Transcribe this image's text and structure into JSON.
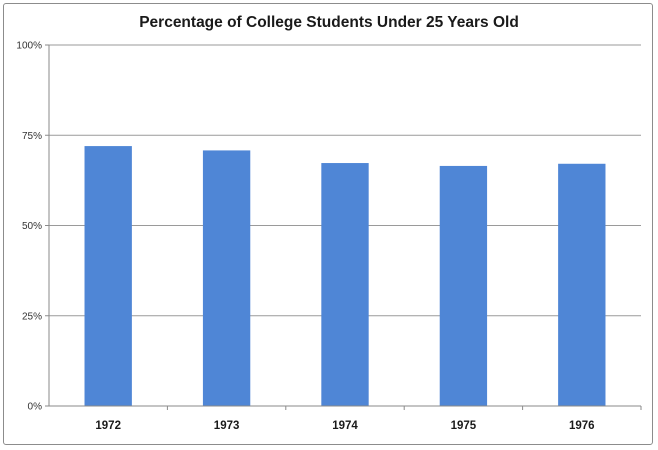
{
  "chart_data": {
    "type": "bar",
    "title": "Percentage of College Students Under 25 Years Old",
    "xlabel": "",
    "ylabel": "",
    "categories": [
      "1972",
      "1973",
      "1974",
      "1975",
      "1976"
    ],
    "values": [
      72,
      70.8,
      67.3,
      66.5,
      67.1
    ],
    "ylim": [
      0,
      100
    ],
    "y_ticks": [
      0,
      25,
      50,
      75,
      100
    ],
    "y_tick_labels": [
      "0%",
      "25%",
      "50%",
      "75%",
      "100%"
    ],
    "grid": true,
    "legend": "none",
    "bar_color": "#4f86d6"
  }
}
